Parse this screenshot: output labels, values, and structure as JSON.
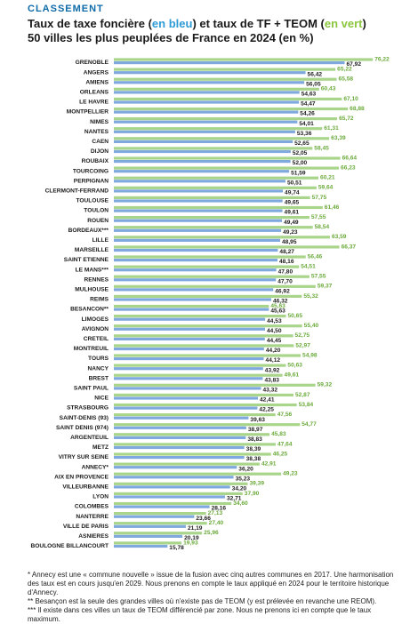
{
  "header": {
    "kicker": "CLASSEMENT",
    "title_line1_part1": "Taux de taxe foncière (",
    "title_line1_blue": "en bleu",
    "title_line1_part2": ") et taux de TF + TEOM (",
    "title_line1_green": "en vert",
    "title_line1_part3": ")",
    "title_line2": "50 villes les plus peuplées de France en 2024 (en %)"
  },
  "colors": {
    "tf": "#7fa9de",
    "tf_teom": "#a8d58a",
    "blue_label": "#2f9bd6",
    "green_label": "#8cc63f",
    "tf_value_text": "#1a1a1a",
    "teom_value_text": "#6aaa3a"
  },
  "chart_data": {
    "type": "bar",
    "orientation": "horizontal",
    "title": "Taux de taxe foncière (en bleu) et taux de TF + TEOM (en vert) 50 villes les plus peuplées de France en 2024 (en %)",
    "categories": [
      "GRENOBLE",
      "ANGERS",
      "AMIENS",
      "ORLEANS",
      "LE HAVRE",
      "MONTPELLIER",
      "NIMES",
      "NANTES",
      "CAEN",
      "DIJON",
      "ROUBAIX",
      "TOURCOING",
      "PERPIGNAN",
      "CLERMONT-FERRAND",
      "TOULOUSE",
      "TOULON",
      "ROUEN",
      "BORDEAUX***",
      "LILLE",
      "MARSEILLE",
      "SAINT ETIENNE",
      "LE MANS***",
      "RENNES",
      "MULHOUSE",
      "REIMS",
      "BESANCON**",
      "LIMOGES",
      "AVIGNON",
      "CRETEIL",
      "MONTREUIL",
      "TOURS",
      "NANCY",
      "BREST",
      "SAINT PAUL",
      "NICE",
      "STRASBOURG",
      "SAINT-DENIS (93)",
      "SAINT DENIS (974)",
      "ARGENTEUIL",
      "METZ",
      "VITRY SUR SEINE",
      "ANNECY*",
      "AIX EN PROVENCE",
      "VILLEURBANNE",
      "LYON",
      "COLOMBES",
      "NANTERRE",
      "VILLE DE PARIS",
      "ASNIERES",
      "BOULOGNE BILLANCOURT"
    ],
    "series": [
      {
        "name": "en bleu",
        "values": [
          67.92,
          56.42,
          56.05,
          54.63,
          54.47,
          54.26,
          54.01,
          53.36,
          52.65,
          52.05,
          52.0,
          51.59,
          50.51,
          49.74,
          49.65,
          49.61,
          49.49,
          49.23,
          48.95,
          48.27,
          48.16,
          47.8,
          47.7,
          46.92,
          46.32,
          45.63,
          44.53,
          44.5,
          44.45,
          44.2,
          44.12,
          43.92,
          43.83,
          43.32,
          42.41,
          42.25,
          39.63,
          38.97,
          38.83,
          38.39,
          38.38,
          36.2,
          35.23,
          34.2,
          32.71,
          28.16,
          23.66,
          21.19,
          20.19,
          15.78
        ]
      },
      {
        "name": "en vert",
        "values": [
          76.22,
          65.22,
          65.58,
          60.43,
          67.1,
          68.88,
          65.72,
          61.31,
          63.39,
          58.45,
          66.64,
          66.23,
          60.21,
          59.64,
          57.75,
          61.46,
          57.55,
          58.54,
          63.59,
          66.37,
          56.46,
          54.51,
          57.55,
          59.37,
          55.32,
          45.63,
          50.65,
          55.4,
          52.75,
          52.97,
          54.98,
          50.63,
          49.61,
          59.32,
          52.87,
          53.84,
          47.56,
          54.77,
          45.83,
          47.64,
          46.25,
          42.91,
          49.23,
          39.39,
          37.9,
          34.6,
          27.13,
          27.4,
          25.96,
          19.93
        ]
      }
    ],
    "tf_labels": [
      "67,92",
      "56,42",
      "56,05",
      "54,63",
      "54,47",
      "54,26",
      "54,01",
      "53,36",
      "52,65",
      "52,05",
      "52,00",
      "51,59",
      "50,51",
      "49,74",
      "49,65",
      "49,61",
      "49,49",
      "49,23",
      "48,95",
      "48,27",
      "48,16",
      "47,80",
      "47,70",
      "46,92",
      "46,32",
      "45,63",
      "44,53",
      "44,50",
      "44,45",
      "44,20",
      "44,12",
      "43,92",
      "43,83",
      "43,32",
      "42,41",
      "42,25",
      "39,63",
      "38,97",
      "38,83",
      "38,39",
      "38,38",
      "36,20",
      "35,23",
      "34,20",
      "32,71",
      "28,16",
      "23,66",
      "21,19",
      "20,19",
      "15,78"
    ],
    "teom_labels": [
      "76,22",
      "65,22",
      "65,58",
      "60,43",
      "67,10",
      "68,88",
      "65,72",
      "61,31",
      "63,39",
      "58,45",
      "66,64",
      "66,23",
      "60,21",
      "59,64",
      "57,75",
      "61,46",
      "57,55",
      "58,54",
      "63,59",
      "66,37",
      "56,46",
      "54,51",
      "57,55",
      "59,37",
      "55,32",
      "45,63",
      "50,65",
      "55,40",
      "52,75",
      "52,97",
      "54,98",
      "50,63",
      "49,61",
      "59,32",
      "52,87",
      "53,84",
      "47,56",
      "54,77",
      "45,83",
      "47,64",
      "46,25",
      "42,91",
      "49,23",
      "39,39",
      "37,90",
      "34,60",
      "27,13",
      "27,40",
      "25,96",
      "19,93"
    ],
    "xlim": [
      0,
      78
    ],
    "grid": false,
    "legend": "none"
  },
  "notes": {
    "n1": "* Annecy est une « commune nouvelle » issue de la fusion avec cinq autres communes en 2017. Une harmonisation des taux est en cours jusqu'en 2029. Nous prenons en compte le taux appliqué en 2024 pour le territoire historique d'Annecy.",
    "n2": "** Besançon est la seule des grandes villes où n'existe pas de TEOM (y est prélevée en revanche une REOM).",
    "n3": "*** Il existe dans ces villes un taux de TEOM différencié par zone. Nous ne prenons ici en compte que le taux maximum."
  }
}
